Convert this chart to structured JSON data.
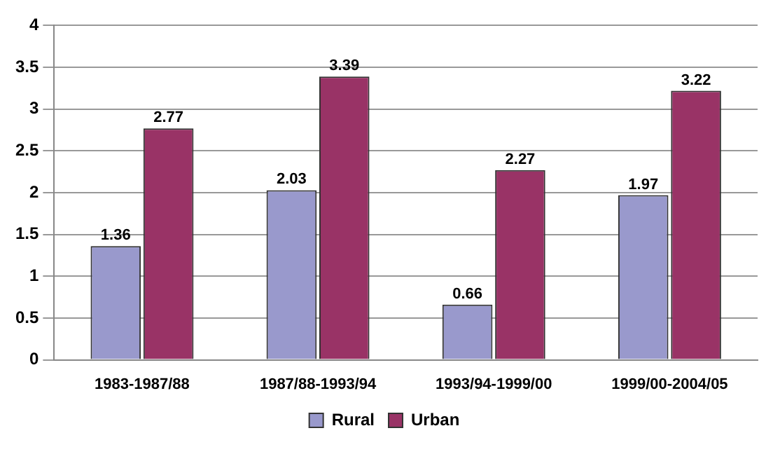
{
  "chart_data": {
    "type": "bar",
    "categories": [
      "1983-1987/88",
      "1987/88-1993/94",
      "1993/94-1999/00",
      "1999/00-2004/05"
    ],
    "series": [
      {
        "name": "Rural",
        "color": "#9999cc",
        "values": [
          1.36,
          2.03,
          0.66,
          1.97
        ]
      },
      {
        "name": "Urban",
        "color": "#993366",
        "values": [
          2.77,
          3.39,
          2.27,
          3.22
        ]
      }
    ],
    "ylim": [
      0,
      4
    ],
    "yticks": [
      0,
      0.5,
      1,
      1.5,
      2,
      2.5,
      3,
      3.5,
      4
    ],
    "grid": "y",
    "legend": "bottom",
    "data_labels": true
  }
}
